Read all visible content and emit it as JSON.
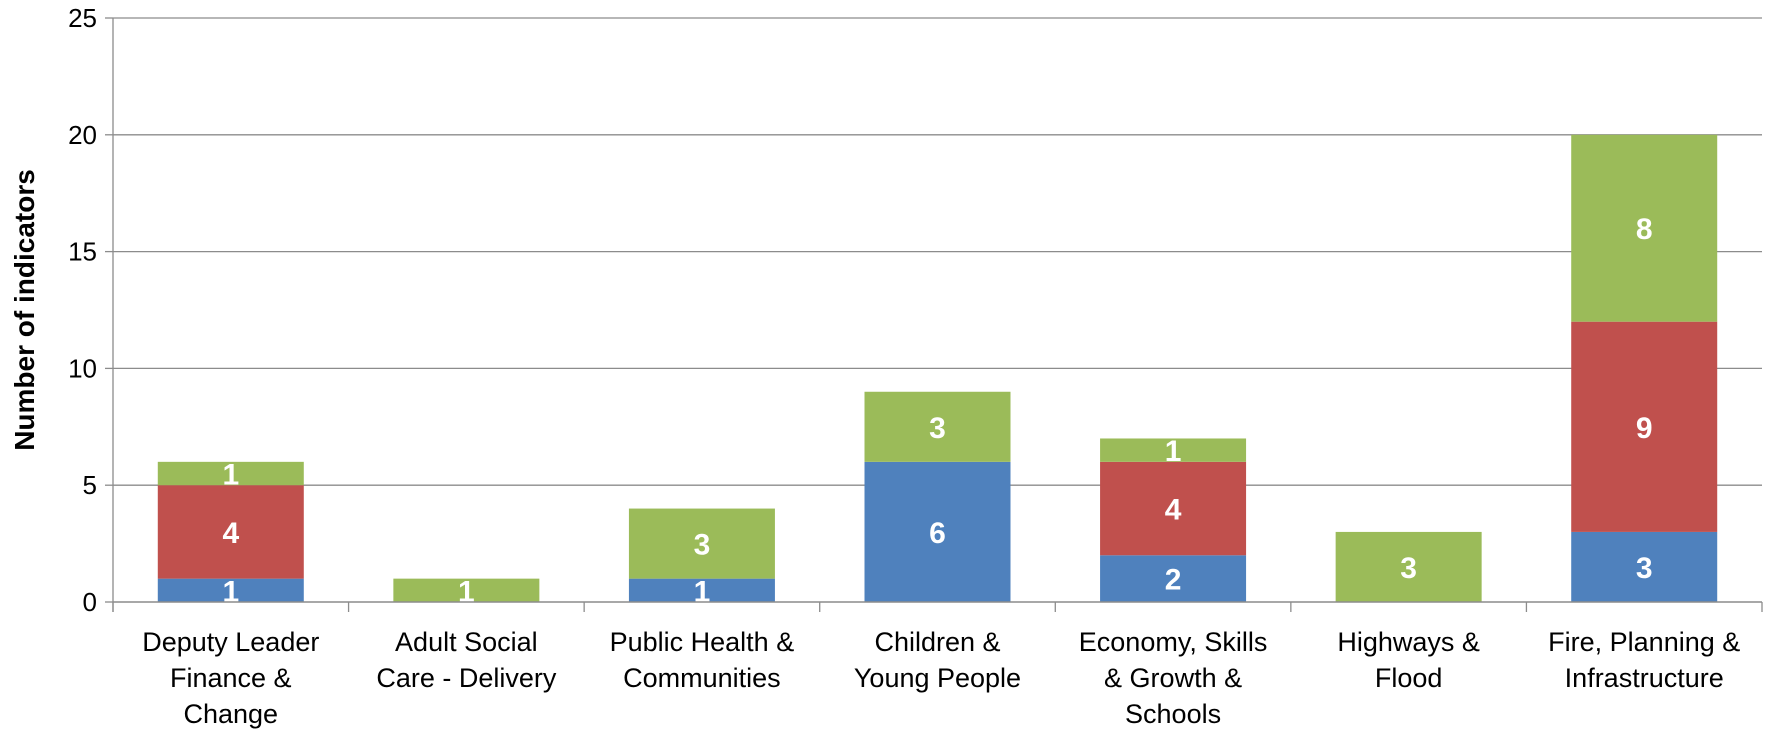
{
  "chart_data": {
    "type": "bar",
    "stacked": true,
    "title": "",
    "xlabel": "",
    "ylabel": "Number of indicators",
    "ylim": [
      0,
      25
    ],
    "yticks": [
      0,
      5,
      10,
      15,
      20,
      25
    ],
    "grid": true,
    "legend": "none",
    "categories": [
      [
        "Deputy Leader",
        "Finance  &",
        "Change"
      ],
      [
        "Adult Social",
        "Care - Delivery"
      ],
      [
        "Public Health &",
        "Communities"
      ],
      [
        "Children &",
        "Young People"
      ],
      [
        "Economy, Skills",
        "& Growth &",
        "Schools"
      ],
      [
        "Highways &",
        "Flood"
      ],
      [
        "Fire, Planning &",
        "Infrastructure"
      ]
    ],
    "series": [
      {
        "color": "#4F81BD",
        "values": [
          1,
          0,
          1,
          6,
          2,
          0,
          3
        ]
      },
      {
        "color": "#C0504D",
        "values": [
          4,
          0,
          0,
          0,
          4,
          0,
          9
        ]
      },
      {
        "color": "#9BBB59",
        "values": [
          1,
          1,
          3,
          3,
          1,
          3,
          8
        ]
      }
    ]
  }
}
